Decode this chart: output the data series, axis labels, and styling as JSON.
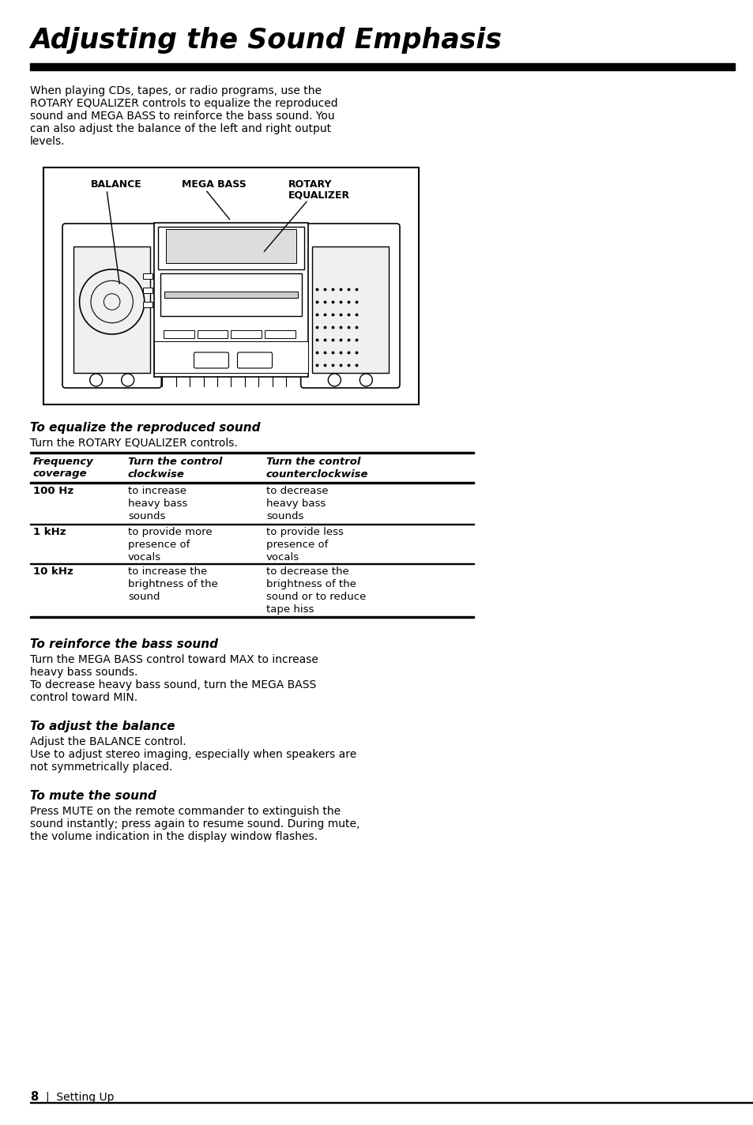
{
  "title": "Adjusting the Sound Emphasis",
  "bg_color": "#ffffff",
  "intro_text_lines": [
    "When playing CDs, tapes, or radio programs, use the",
    "ROTARY EQUALIZER controls to equalize the reproduced",
    "sound and MEGA BASS to reinforce the bass sound. You",
    "can also adjust the balance of the left and right output",
    "levels."
  ],
  "section1_title": "To equalize the reproduced sound",
  "section1_body": "Turn the ROTARY EQUALIZER controls.",
  "table_headers": [
    "Frequency\ncoverage",
    "Turn the control\nclockwise",
    "Turn the control\ncounterclockwise"
  ],
  "table_rows": [
    [
      "100 Hz",
      "to increase\nheavy bass\nsounds",
      "to decrease\nheavy bass\nsounds"
    ],
    [
      "1 kHz",
      "to provide more\npresence of\nvocals",
      "to provide less\npresence of\nvocals"
    ],
    [
      "10 kHz",
      "to increase the\nbrightness of the\nsound",
      "to decrease the\nbrightness of the\nsound or to reduce\ntape hiss"
    ]
  ],
  "section2_title": "To reinforce the bass sound",
  "section2_body_lines": [
    "Turn the MEGA BASS control toward MAX to increase",
    "heavy bass sounds.",
    "To decrease heavy bass sound, turn the MEGA BASS",
    "control toward MIN."
  ],
  "section3_title": "To adjust the balance",
  "section3_body_lines": [
    "Adjust the BALANCE control.",
    "Use to adjust stereo imaging, especially when speakers are",
    "not symmetrically placed."
  ],
  "section4_title": "To mute the sound",
  "section4_body_lines": [
    "Press MUTE on the remote commander to extinguish the",
    "sound instantly; press again to resume sound. During mute,",
    "the volume indication in the display window flashes."
  ],
  "footer": "8 Setting Up"
}
